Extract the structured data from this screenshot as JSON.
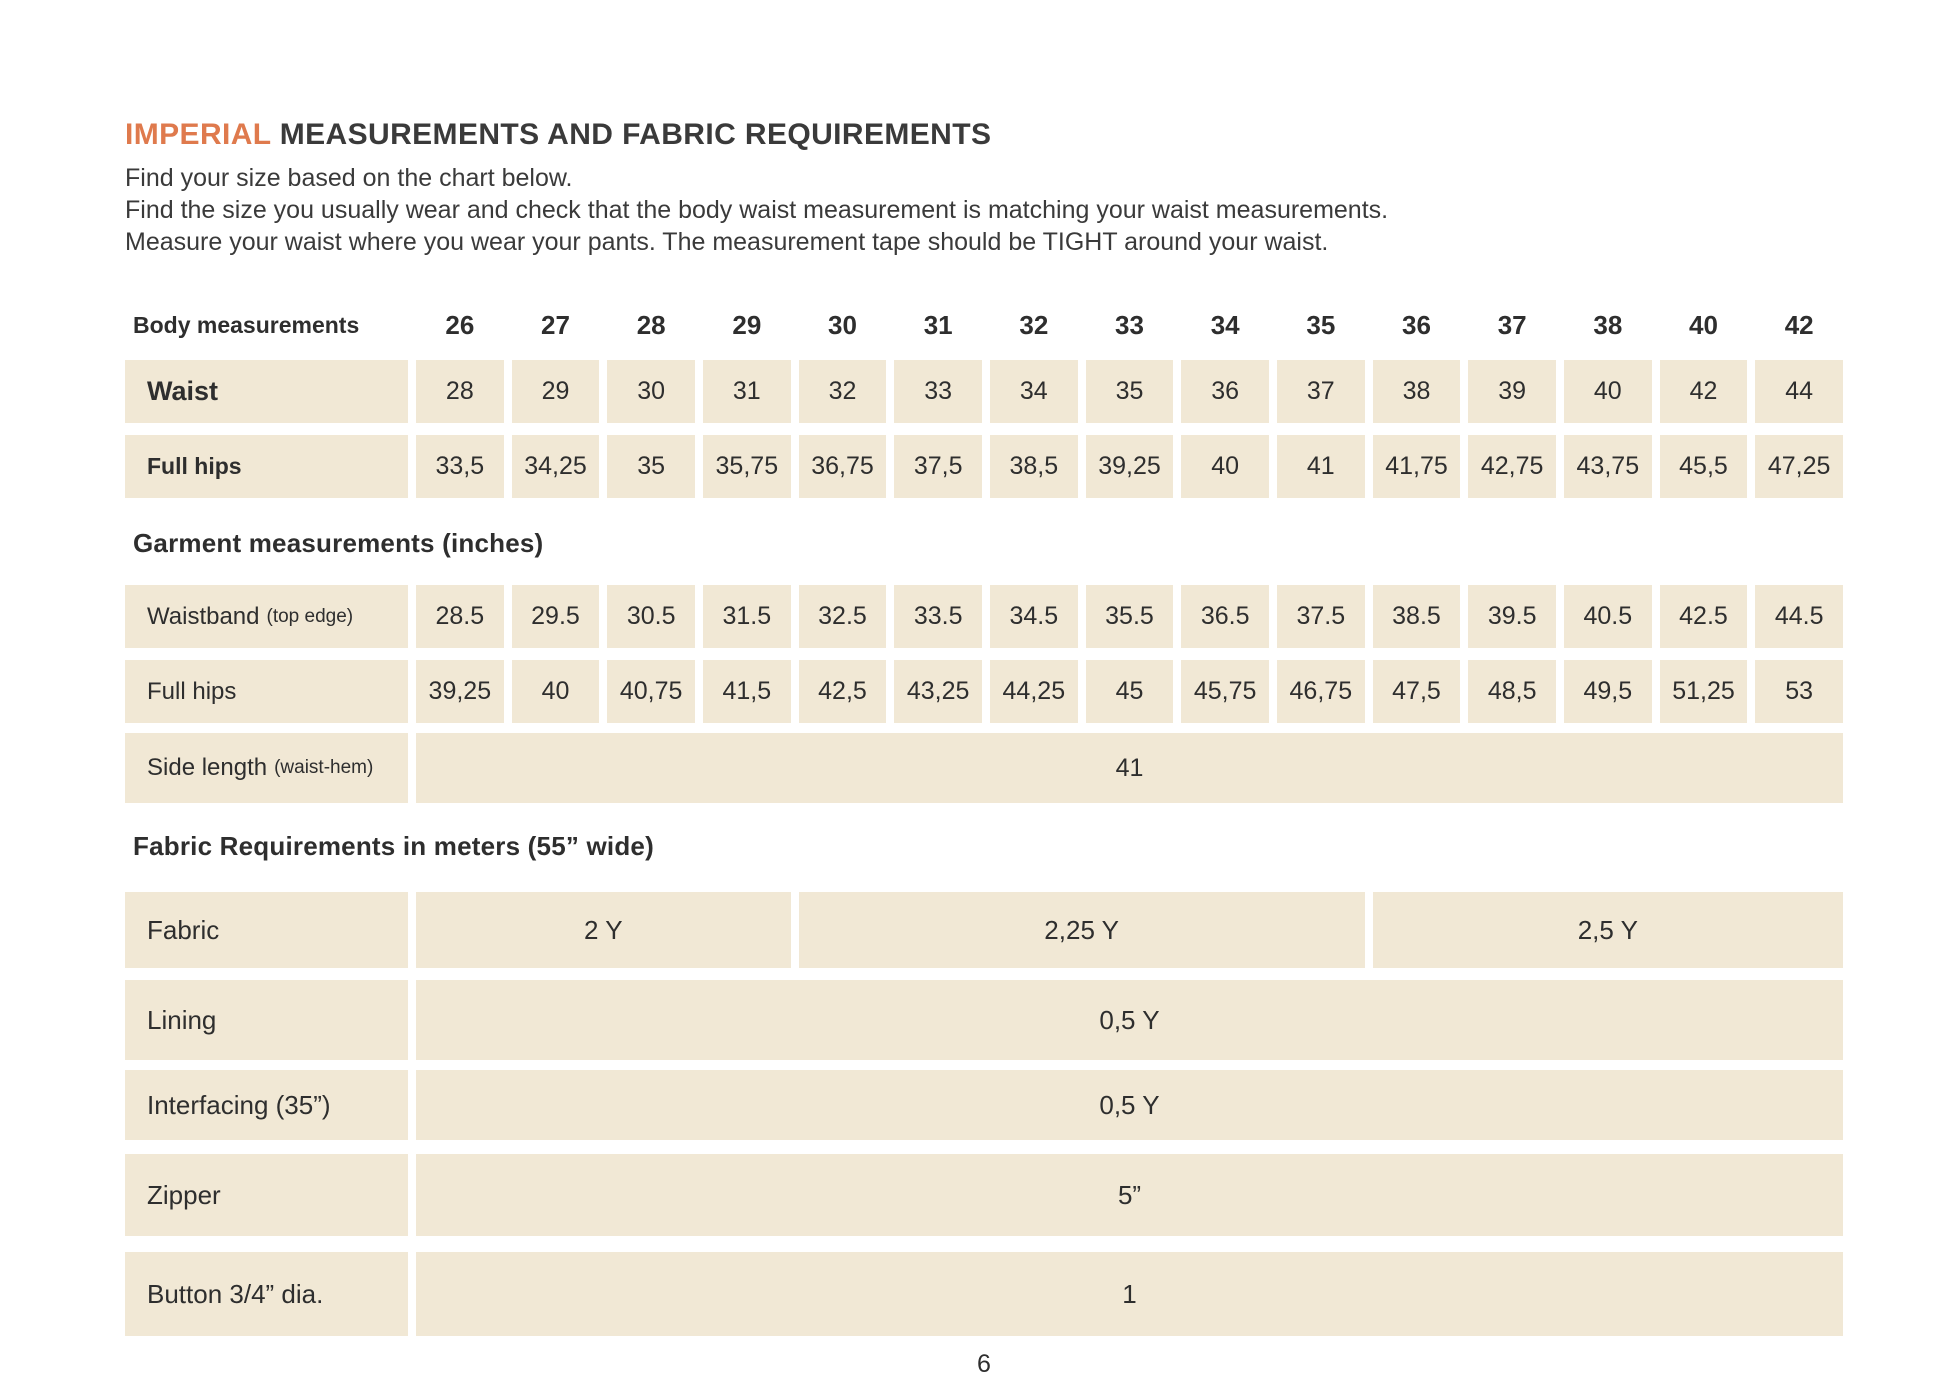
{
  "header": {
    "title_highlight": "IMPERIAL",
    "title_rest": " MEASUREMENTS AND FABRIC REQUIREMENTS",
    "intro": [
      "Find your size based on the chart below.",
      "Find the size you usually wear and check that the body waist measurement is matching your waist measurements.",
      "Measure your waist where you wear your pants. The measurement tape should be TIGHT around your waist."
    ]
  },
  "colors": {
    "accent": "#df7a4d",
    "cell_background": "#f1e8d5",
    "text": "#2e2e2e"
  },
  "chart": {
    "header_label": "Body measurements",
    "sizes": [
      "26",
      "27",
      "28",
      "29",
      "30",
      "31",
      "32",
      "33",
      "34",
      "35",
      "36",
      "37",
      "38",
      "40",
      "42"
    ],
    "waist": {
      "label": "Waist",
      "values": [
        "28",
        "29",
        "30",
        "31",
        "32",
        "33",
        "34",
        "35",
        "36",
        "37",
        "38",
        "39",
        "40",
        "42",
        "44"
      ]
    },
    "body_full_hips": {
      "label": "Full hips",
      "values": [
        "33,5",
        "34,25",
        "35",
        "35,75",
        "36,75",
        "37,5",
        "38,5",
        "39,25",
        "40",
        "41",
        "41,75",
        "42,75",
        "43,75",
        "45,5",
        "47,25"
      ]
    },
    "garment_heading": "Garment measurements (inches)",
    "waistband": {
      "label": "Waistband",
      "note": "(top edge)",
      "values": [
        "28.5",
        "29.5",
        "30.5",
        "31.5",
        "32.5",
        "33.5",
        "34.5",
        "35.5",
        "36.5",
        "37.5",
        "38.5",
        "39.5",
        "40.5",
        "42.5",
        "44.5"
      ]
    },
    "garment_full_hips": {
      "label": "Full hips",
      "values": [
        "39,25",
        "40",
        "40,75",
        "41,5",
        "42,5",
        "43,25",
        "44,25",
        "45",
        "45,75",
        "46,75",
        "47,5",
        "48,5",
        "49,5",
        "51,25",
        "53"
      ]
    },
    "side_length": {
      "label": "Side length",
      "note": "(waist-hem)",
      "value": "41"
    },
    "fabric_heading": "Fabric Requirements in meters (55” wide)",
    "fabric": {
      "label": "Fabric",
      "segments": [
        "2 Y",
        "2,25 Y",
        "2,5 Y"
      ]
    },
    "lining": {
      "label": "Lining",
      "value": "0,5 Y"
    },
    "interfacing": {
      "label": "Interfacing (35”)",
      "value": "0,5 Y"
    },
    "zipper": {
      "label": "Zipper",
      "value": "5”"
    },
    "button": {
      "label": "Button 3/4” dia.",
      "value": "1"
    }
  },
  "footer": {
    "page_number": "6"
  }
}
